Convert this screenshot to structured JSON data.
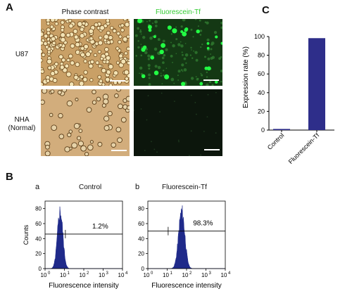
{
  "panel_a": {
    "letter": "A",
    "columns": [
      "Phase  contrast",
      "Fluorescein-Tf"
    ],
    "rows": [
      {
        "label": "U87"
      },
      {
        "label_line1": "NHA",
        "label_line2": "(Normal)"
      }
    ],
    "colors": {
      "fluorescein_label": "#33cc33",
      "phase_bg": "#c9a066",
      "fluor_bg": "#143814",
      "fluor_dark": "#0c160c",
      "spot": "#22ff44"
    }
  },
  "panel_b": {
    "letter": "B",
    "y_axis_label": "Counts",
    "x_axis_label": "Fluorescence intensity",
    "y_ticks": [
      "0",
      "20",
      "40",
      "60",
      "80"
    ],
    "histograms": [
      {
        "sub_letter": "a",
        "title": "Control",
        "percent_label": "1.2%",
        "gate_y": 46,
        "peak_center_log": 0.78,
        "peak_height": 76,
        "spread": 0.14
      },
      {
        "sub_letter": "b",
        "title": "Fluorescein-Tf",
        "percent_label": "98.3%",
        "gate_y": 50,
        "peak_center_log": 1.75,
        "peak_height": 76,
        "spread": 0.16
      }
    ],
    "fill_color": "#1f2a8a"
  },
  "chart_data": {
    "type": "bar",
    "letter": "C",
    "categories": [
      "Control",
      "Fluorescein-Tf"
    ],
    "values": [
      1.2,
      98.3
    ],
    "ylabel": "Expression rate (%)",
    "xlabel": "",
    "ylim": [
      0,
      100
    ],
    "y_ticks": [
      0,
      20,
      40,
      60,
      80,
      100
    ],
    "bar_color": "#2e2e8a",
    "grid": false
  }
}
